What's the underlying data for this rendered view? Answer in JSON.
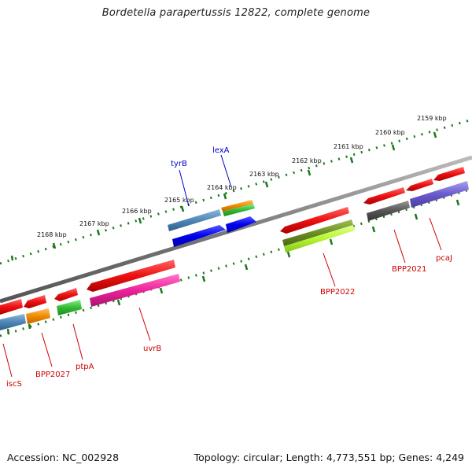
{
  "title": "Bordetella parapertussis 12822, complete genome",
  "footer": {
    "accession": "Accession: NC_002928",
    "summary": "Topology: circular; Length: 4,773,551 bp; Genes: 4,249"
  },
  "kbp_labels": [
    "2168 kbp",
    "2167 kbp",
    "2166 kbp",
    "2165 kbp",
    "2164 kbp",
    "2163 kbp",
    "2162 kbp",
    "2161 kbp",
    "2160 kbp",
    "2159 kbp"
  ],
  "gene_labels": {
    "tyrB": "tyrB",
    "lexA": "lexA",
    "BPP2022": "BPP2022",
    "BPP2021": "BPP2021",
    "pcaJ": "pcaJ",
    "uvrB": "uvrB",
    "ptpA": "ptpA",
    "BPP2027": "BPP2027",
    "iscS": "iscS"
  },
  "colors": {
    "backbone": "#7a7a7a",
    "ticks": "#1a7a1a",
    "red": "#ee1111",
    "blue": "#0000ee",
    "steelblue": "#4f86b8",
    "orange": "#f08a00",
    "green": "#33bb33",
    "olive": "#6b8e23",
    "lime": "#b5f532",
    "magenta": "#ee2299",
    "gray": "#555555",
    "slateblue": "#6a5acd"
  }
}
